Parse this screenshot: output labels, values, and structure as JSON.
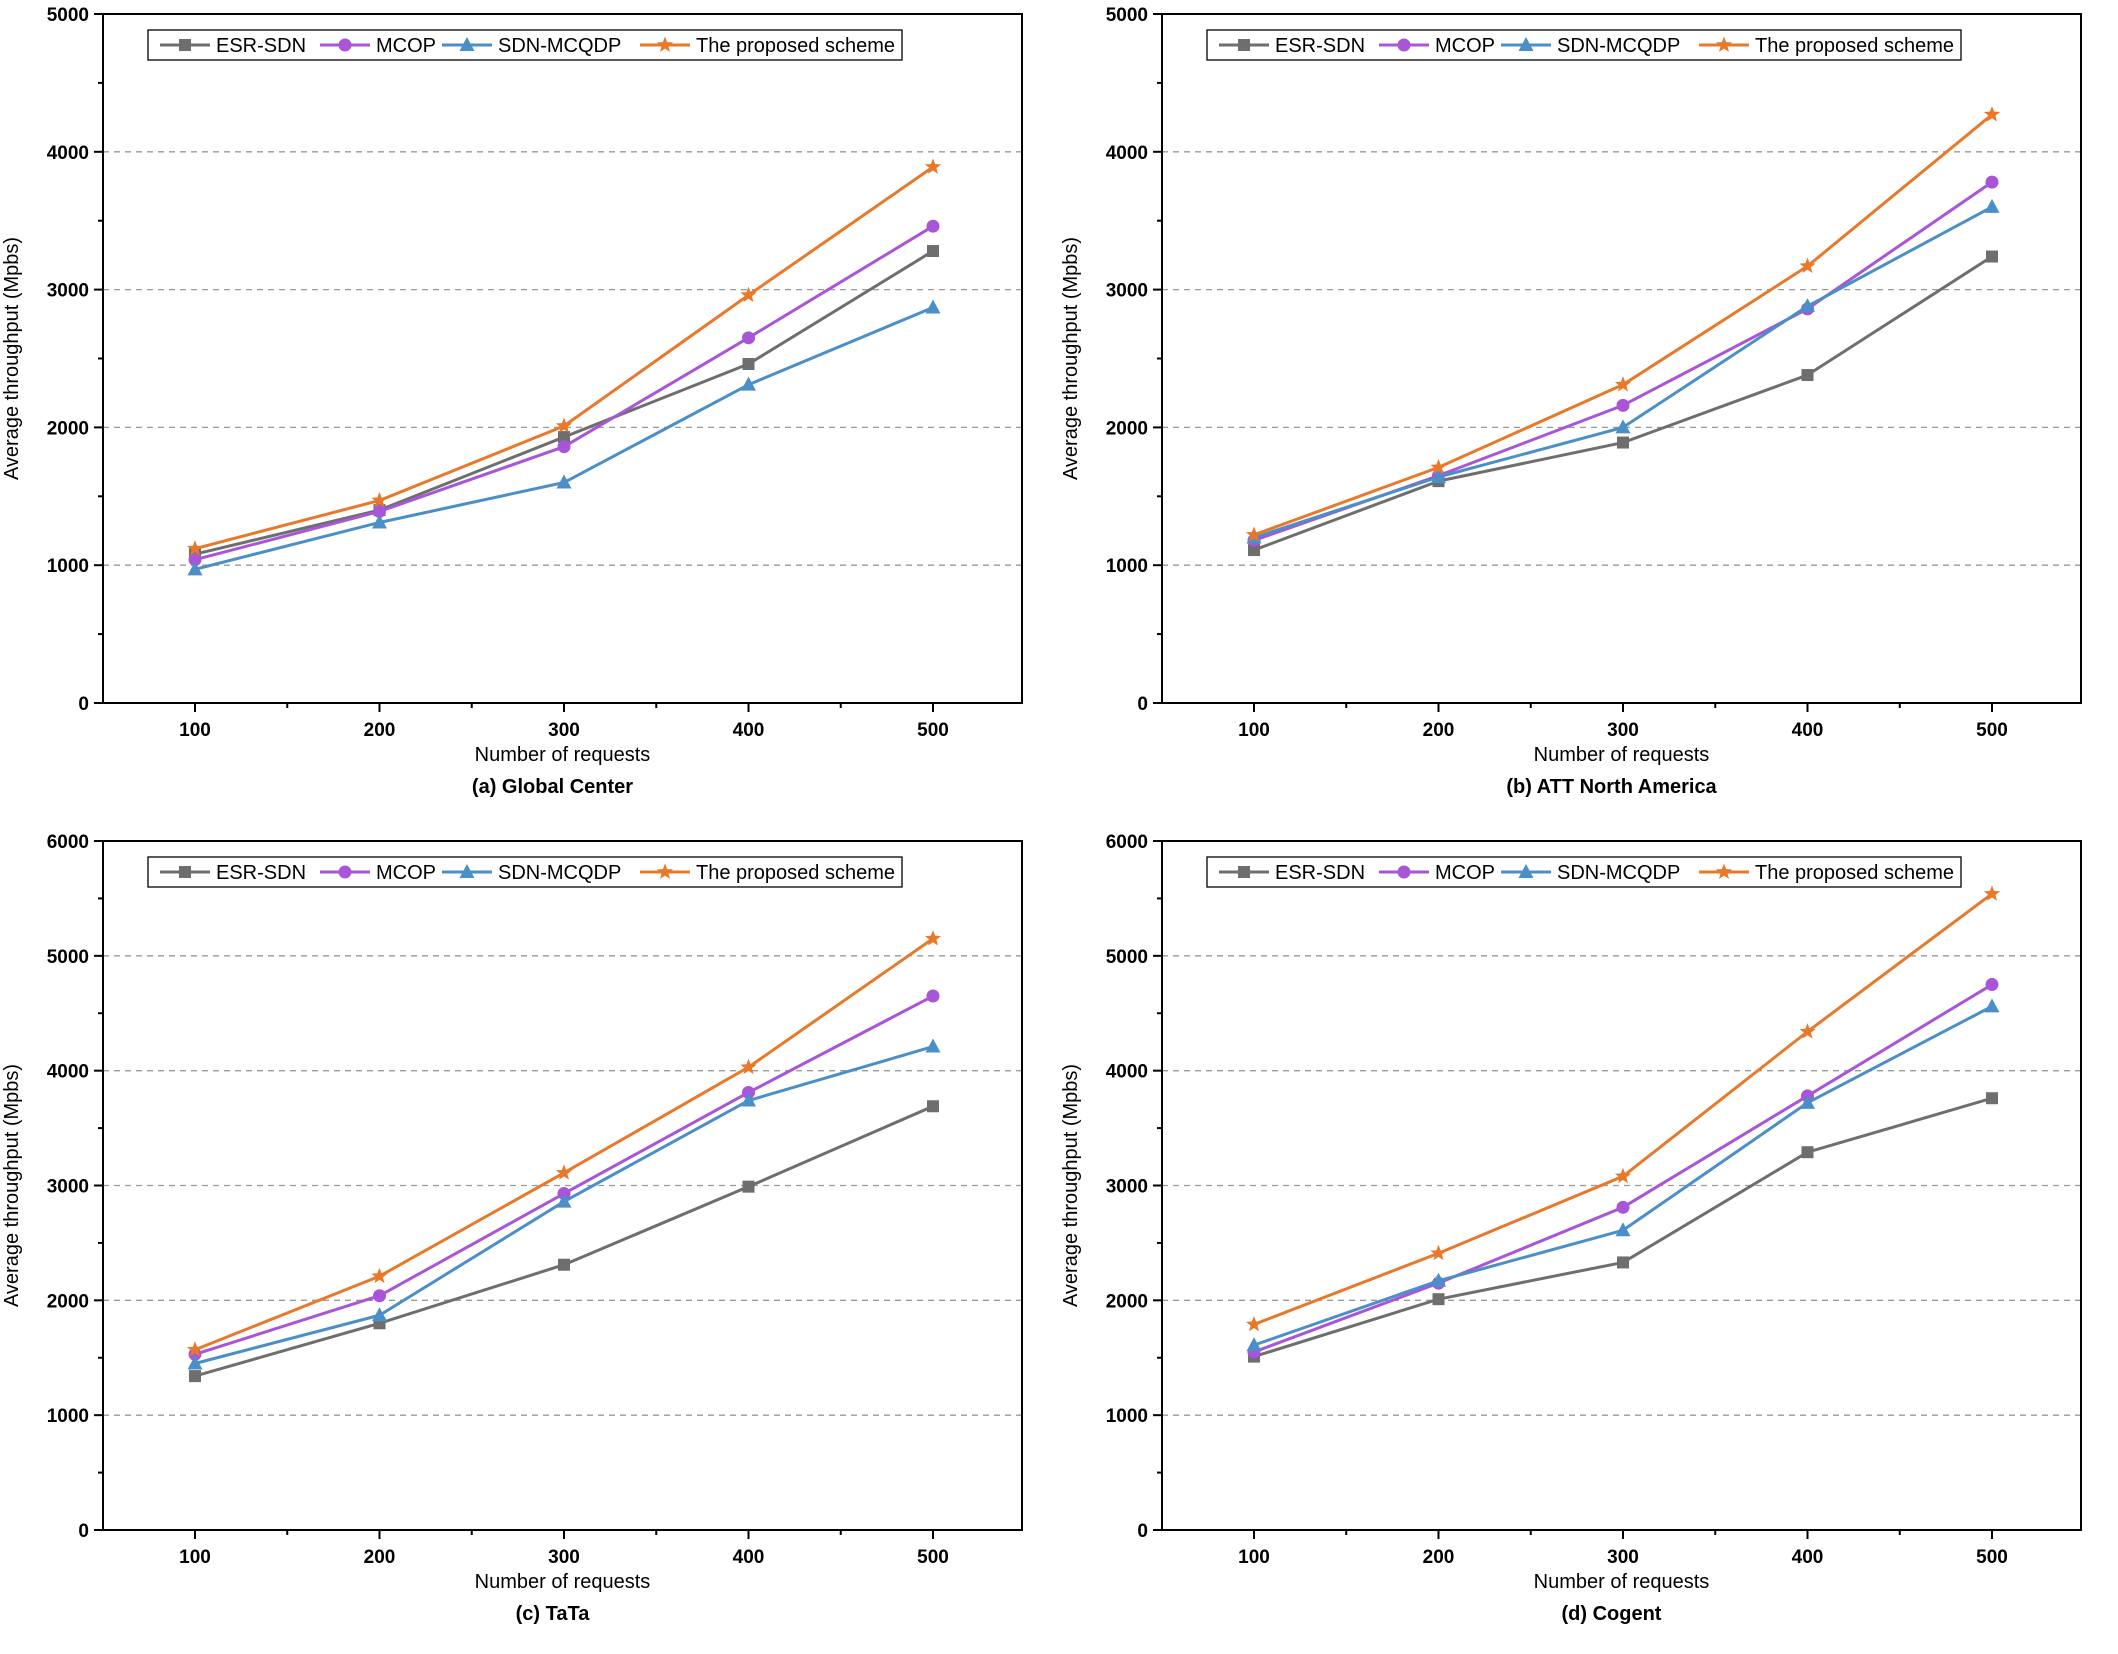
{
  "colors": {
    "ESR-SDN": "#6e6e6e",
    "MCOP": "#a855d8",
    "SDN-MCQDP": "#4a8fc8",
    "The proposed scheme": "#e8792b",
    "grid": "#9a9a9a",
    "axis": "#000000"
  },
  "markers": {
    "ESR-SDN": "square",
    "MCOP": "circle",
    "SDN-MCQDP": "triangle",
    "The proposed scheme": "star"
  },
  "chart_data": [
    {
      "type": "line",
      "caption": "(a) Global Center",
      "xlabel": "Number of requests",
      "ylabel": "Average throughput (Mpbs)",
      "categories": [
        "100",
        "200",
        "300",
        "400",
        "500"
      ],
      "ylim": [
        0,
        5000
      ],
      "yticks": [
        0,
        1000,
        2000,
        3000,
        4000,
        5000
      ],
      "grid": "horizontal-dashed",
      "legend": "top",
      "series": [
        {
          "name": "ESR-SDN",
          "values": [
            1080,
            1400,
            1930,
            2460,
            3280
          ]
        },
        {
          "name": "MCOP",
          "values": [
            1040,
            1390,
            1860,
            2650,
            3460
          ]
        },
        {
          "name": "SDN-MCQDP",
          "values": [
            970,
            1310,
            1600,
            2310,
            2870
          ]
        },
        {
          "name": "The proposed scheme",
          "values": [
            1120,
            1470,
            2010,
            2960,
            3890
          ]
        }
      ]
    },
    {
      "type": "line",
      "caption": "(b) ATT North America",
      "xlabel": "Number of requests",
      "ylabel": "Average throughput (Mpbs)",
      "categories": [
        "100",
        "200",
        "300",
        "400",
        "500"
      ],
      "ylim": [
        0,
        5000
      ],
      "yticks": [
        0,
        1000,
        2000,
        3000,
        4000,
        5000
      ],
      "grid": "horizontal-dashed",
      "legend": "top",
      "series": [
        {
          "name": "ESR-SDN",
          "values": [
            1110,
            1610,
            1890,
            2380,
            3240
          ]
        },
        {
          "name": "MCOP",
          "values": [
            1180,
            1650,
            2160,
            2860,
            3780
          ]
        },
        {
          "name": "SDN-MCQDP",
          "values": [
            1200,
            1640,
            2000,
            2880,
            3600
          ]
        },
        {
          "name": "The proposed scheme",
          "values": [
            1220,
            1710,
            2310,
            3170,
            4270
          ]
        }
      ]
    },
    {
      "type": "line",
      "caption": "(c) TaTa",
      "xlabel": "Number of requests",
      "ylabel": "Average throughput (Mpbs)",
      "categories": [
        "100",
        "200",
        "300",
        "400",
        "500"
      ],
      "ylim": [
        0,
        6000
      ],
      "yticks": [
        0,
        1000,
        2000,
        3000,
        4000,
        5000,
        6000
      ],
      "grid": "horizontal-dashed",
      "legend": "top",
      "series": [
        {
          "name": "ESR-SDN",
          "values": [
            1340,
            1800,
            2310,
            2990,
            3690
          ]
        },
        {
          "name": "MCOP",
          "values": [
            1530,
            2040,
            2930,
            3810,
            4650
          ]
        },
        {
          "name": "SDN-MCQDP",
          "values": [
            1450,
            1870,
            2860,
            3740,
            4210
          ]
        },
        {
          "name": "The proposed scheme",
          "values": [
            1570,
            2210,
            3110,
            4030,
            5150
          ]
        }
      ]
    },
    {
      "type": "line",
      "caption": "(d) Cogent",
      "xlabel": "Number of requests",
      "ylabel": "Average throughput (Mpbs)",
      "categories": [
        "100",
        "200",
        "300",
        "400",
        "500"
      ],
      "ylim": [
        0,
        6000
      ],
      "yticks": [
        0,
        1000,
        2000,
        3000,
        4000,
        5000,
        6000
      ],
      "grid": "horizontal-dashed",
      "legend": "top",
      "series": [
        {
          "name": "ESR-SDN",
          "values": [
            1510,
            2010,
            2330,
            3290,
            3760
          ]
        },
        {
          "name": "MCOP",
          "values": [
            1550,
            2150,
            2810,
            3780,
            4750
          ]
        },
        {
          "name": "SDN-MCQDP",
          "values": [
            1610,
            2170,
            2610,
            3720,
            4560
          ]
        },
        {
          "name": "The proposed scheme",
          "values": [
            1790,
            2410,
            3080,
            4340,
            5540
          ]
        }
      ]
    }
  ]
}
